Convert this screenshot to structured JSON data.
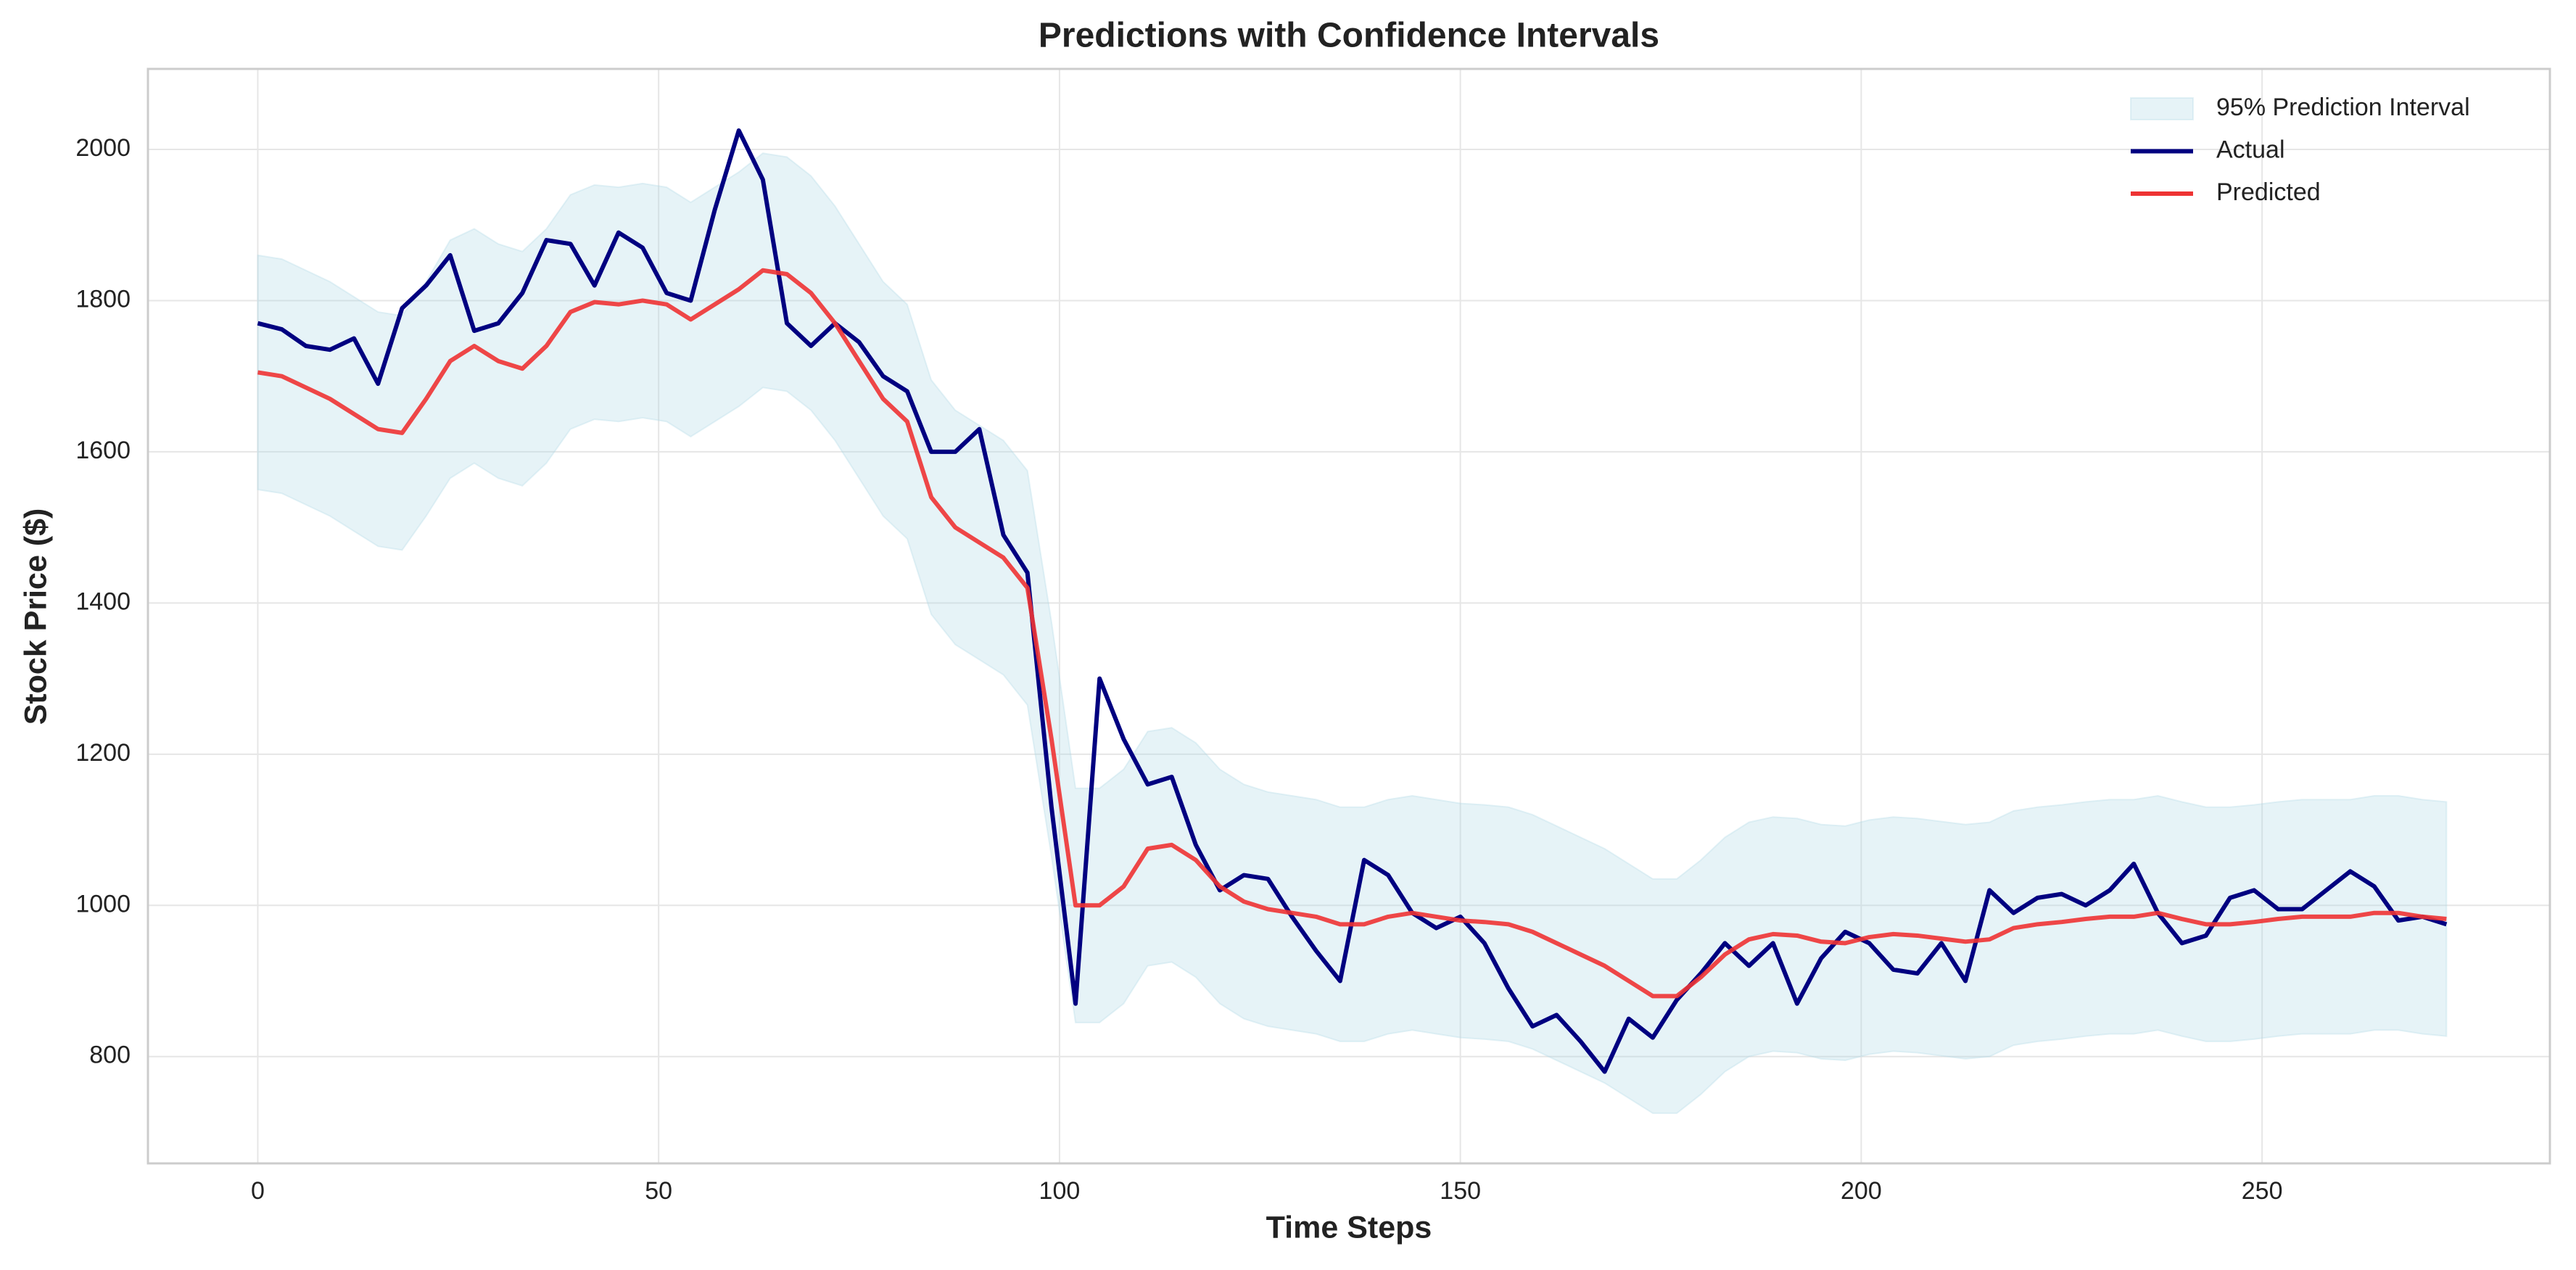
{
  "chart_data": {
    "type": "line",
    "title": "Predictions with Confidence Intervals",
    "x_label": "Time Steps",
    "y_label": "Stock Price ($)",
    "x": [
      0,
      3,
      6,
      9,
      12,
      15,
      18,
      21,
      24,
      27,
      30,
      33,
      36,
      39,
      42,
      45,
      48,
      51,
      54,
      57,
      60,
      63,
      66,
      69,
      72,
      75,
      78,
      81,
      84,
      87,
      90,
      93,
      96,
      99,
      102,
      105,
      108,
      111,
      114,
      117,
      120,
      123,
      126,
      129,
      132,
      135,
      138,
      141,
      144,
      147,
      150,
      153,
      156,
      159,
      162,
      165,
      168,
      171,
      174,
      177,
      180,
      183,
      186,
      189,
      192,
      195,
      198,
      201,
      204,
      207,
      210,
      213,
      216,
      219,
      222,
      225,
      228,
      231,
      234,
      237,
      240,
      243,
      246,
      249,
      252,
      255,
      258,
      261,
      264,
      267,
      270,
      273
    ],
    "series": [
      {
        "name": "95% Prediction Interval",
        "color": "#add8e6",
        "opacity": 0.3,
        "upper": [
          1860,
          1855,
          1840,
          1825,
          1805,
          1785,
          1780,
          1825,
          1880,
          1895,
          1875,
          1865,
          1895,
          1940,
          1953,
          1950,
          1955,
          1950,
          1930,
          1950,
          1970,
          1995,
          1990,
          1965,
          1925,
          1875,
          1825,
          1795,
          1695,
          1655,
          1635,
          1615,
          1575,
          1375,
          1155,
          1155,
          1180,
          1230,
          1235,
          1215,
          1180,
          1160,
          1150,
          1145,
          1140,
          1130,
          1130,
          1140,
          1145,
          1140,
          1135,
          1133,
          1130,
          1120,
          1105,
          1090,
          1075,
          1055,
          1035,
          1035,
          1060,
          1090,
          1110,
          1117,
          1115,
          1107,
          1105,
          1113,
          1117,
          1115,
          1111,
          1107,
          1110,
          1125,
          1130,
          1133,
          1137,
          1140,
          1140,
          1145,
          1137,
          1130,
          1130,
          1133,
          1137,
          1140,
          1140,
          1140,
          1145,
          1145,
          1140,
          1137
        ],
        "lower": [
          1550,
          1545,
          1530,
          1515,
          1495,
          1475,
          1470,
          1515,
          1565,
          1585,
          1565,
          1555,
          1585,
          1630,
          1643,
          1640,
          1645,
          1640,
          1620,
          1640,
          1660,
          1685,
          1680,
          1655,
          1615,
          1565,
          1515,
          1485,
          1385,
          1345,
          1325,
          1305,
          1265,
          1065,
          845,
          845,
          870,
          920,
          925,
          905,
          870,
          850,
          840,
          835,
          830,
          820,
          820,
          830,
          835,
          830,
          825,
          823,
          820,
          810,
          795,
          780,
          765,
          745,
          725,
          725,
          750,
          780,
          800,
          807,
          805,
          797,
          795,
          803,
          807,
          805,
          801,
          797,
          800,
          815,
          820,
          823,
          827,
          830,
          830,
          835,
          827,
          820,
          820,
          823,
          827,
          830,
          830,
          830,
          835,
          835,
          830,
          827
        ]
      },
      {
        "name": "Actual",
        "color": "#000080",
        "values": [
          1770,
          1762,
          1740,
          1735,
          1750,
          1690,
          1790,
          1820,
          1860,
          1760,
          1770,
          1810,
          1880,
          1875,
          1820,
          1890,
          1870,
          1810,
          1800,
          1920,
          2025,
          1960,
          1770,
          1740,
          1770,
          1745,
          1700,
          1680,
          1600,
          1600,
          1630,
          1490,
          1440,
          1130,
          870,
          1300,
          1220,
          1160,
          1170,
          1080,
          1020,
          1040,
          1035,
          985,
          940,
          900,
          1060,
          1040,
          990,
          970,
          985,
          950,
          890,
          840,
          855,
          820,
          780,
          850,
          825,
          875,
          910,
          950,
          920,
          950,
          870,
          930,
          965,
          950,
          915,
          910,
          950,
          900,
          1020,
          990,
          1010,
          1015,
          1000,
          1020,
          1055,
          990,
          950,
          960,
          1010,
          1020,
          995,
          995,
          1020,
          1045,
          1025,
          980,
          985,
          975
        ]
      },
      {
        "name": "Predicted",
        "color": "#ee3333",
        "values": [
          1705,
          1700,
          1685,
          1670,
          1650,
          1630,
          1625,
          1670,
          1720,
          1740,
          1720,
          1710,
          1740,
          1785,
          1798,
          1795,
          1800,
          1795,
          1775,
          1795,
          1815,
          1840,
          1835,
          1810,
          1770,
          1720,
          1670,
          1640,
          1540,
          1500,
          1480,
          1460,
          1420,
          1220,
          1000,
          1000,
          1025,
          1075,
          1080,
          1060,
          1025,
          1005,
          995,
          990,
          985,
          975,
          975,
          985,
          990,
          985,
          980,
          978,
          975,
          965,
          950,
          935,
          920,
          900,
          880,
          880,
          905,
          935,
          955,
          962,
          960,
          952,
          950,
          958,
          962,
          960,
          956,
          952,
          955,
          970,
          975,
          978,
          982,
          985,
          985,
          990,
          982,
          975,
          975,
          978,
          982,
          985,
          985,
          985,
          990,
          990,
          985,
          982
        ]
      }
    ],
    "xlim": [
      -13.7,
      285.9
    ],
    "ylim": [
      658.7,
      2106.5
    ],
    "xticks": [
      0,
      50,
      100,
      150,
      200,
      250
    ],
    "yticks": [
      800,
      1000,
      1200,
      1400,
      1600,
      1800,
      2000
    ],
    "grid": true,
    "legend": "upper right"
  }
}
